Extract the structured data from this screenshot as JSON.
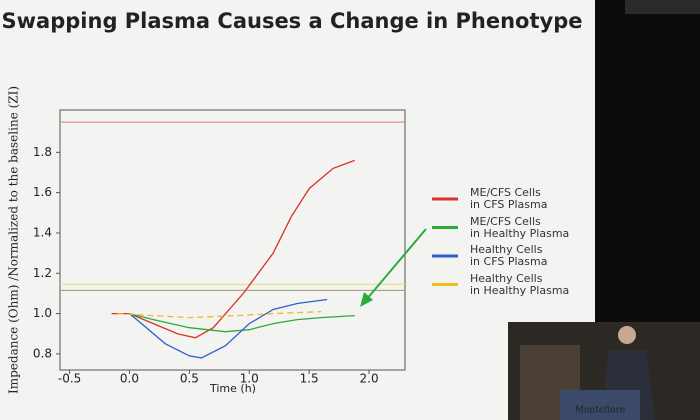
{
  "chart_data": {
    "type": "line",
    "title": "Swapping Plasma Causes a Change in Phenotype",
    "xlabel": "Time (h)",
    "ylabel": "Impedance (Ohm) /Normalized to the baseline (ZI)",
    "xlim": [
      -0.58,
      2.3
    ],
    "ylim": [
      0.72,
      2.01
    ],
    "xticks": [
      -0.5,
      0.0,
      0.5,
      1.0,
      1.5,
      2.0
    ],
    "yticks": [
      0.8,
      1.0,
      1.2,
      1.4,
      1.6,
      1.8
    ],
    "hlines": [
      {
        "value": 1.95,
        "color": "#e07a6a"
      },
      {
        "value": 1.145,
        "color": "#e8e070"
      },
      {
        "value": 1.115,
        "color": "#9a9a70"
      }
    ],
    "series": [
      {
        "name": "ME/CFS Cells\nin CFS Plasma",
        "color": "#d9322a",
        "x": [
          -0.15,
          0.0,
          0.2,
          0.4,
          0.55,
          0.7,
          0.95,
          1.2,
          1.35,
          1.5,
          1.7,
          1.88
        ],
        "values": [
          1.0,
          1.0,
          0.95,
          0.9,
          0.88,
          0.93,
          1.1,
          1.3,
          1.48,
          1.62,
          1.72,
          1.76
        ]
      },
      {
        "name": "ME/CFS Cells\nin Healthy Plasma",
        "color": "#2eaa3a",
        "x": [
          0.0,
          0.2,
          0.5,
          0.8,
          1.0,
          1.2,
          1.4,
          1.6,
          1.88
        ],
        "values": [
          1.0,
          0.97,
          0.93,
          0.91,
          0.92,
          0.95,
          0.97,
          0.98,
          0.99
        ]
      },
      {
        "name": "Healthy Cells\nin CFS Plasma",
        "color": "#2f5fd0",
        "x": [
          0.0,
          0.1,
          0.3,
          0.5,
          0.6,
          0.8,
          1.0,
          1.2,
          1.4,
          1.65
        ],
        "values": [
          1.0,
          0.95,
          0.85,
          0.79,
          0.78,
          0.84,
          0.95,
          1.02,
          1.05,
          1.07
        ]
      },
      {
        "name": "Healthy Cells\nin Healthy Plasma",
        "color": "#f2b820",
        "x": [
          -0.1,
          0.2,
          0.5,
          0.9,
          1.2,
          1.6
        ],
        "values": [
          1.0,
          0.99,
          0.98,
          0.99,
          1.0,
          1.01
        ]
      }
    ],
    "inset_text": "Montefiore"
  }
}
